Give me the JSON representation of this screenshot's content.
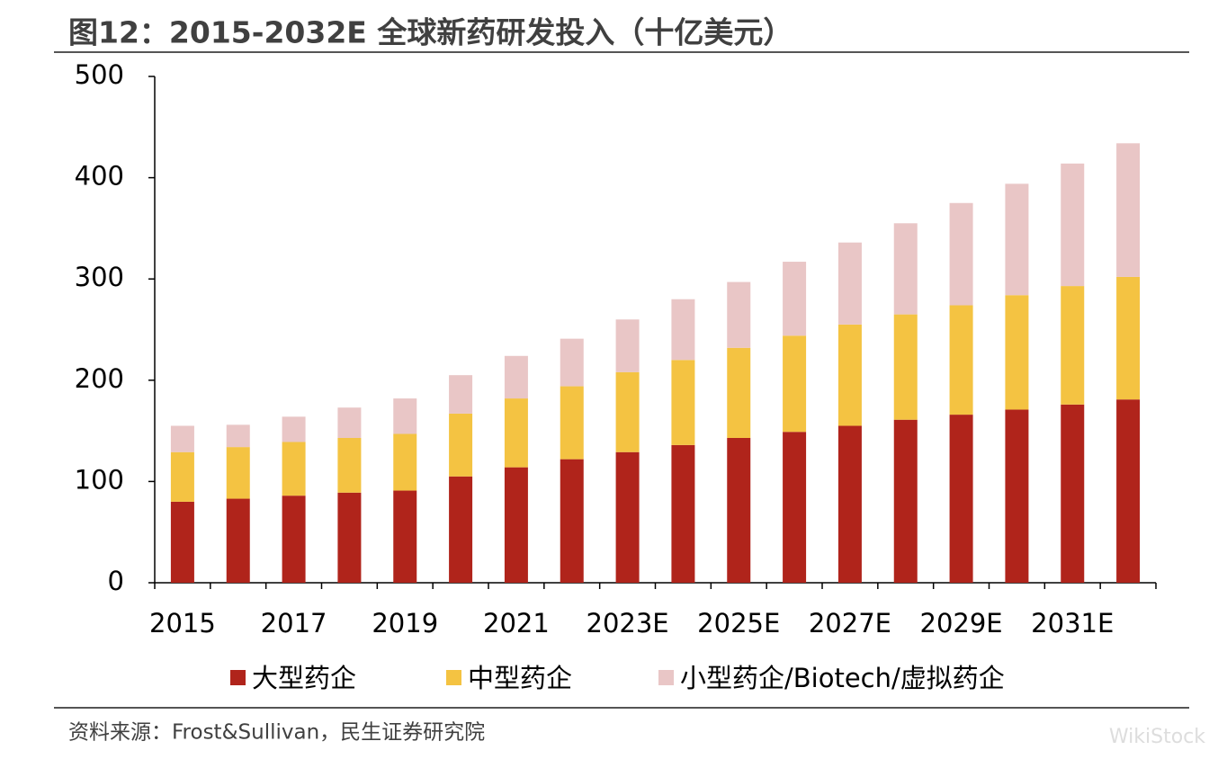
{
  "chart_data": {
    "type": "stacked_bar",
    "title": "图12：2015-2032E 全球新药研发投入（十亿美元）",
    "source": "资料来源：Frost&Sullivan，民生证券研究院",
    "watermark": "WikiStock",
    "categories": [
      "2015",
      null,
      "2017",
      null,
      "2019",
      null,
      "2021",
      null,
      "2023E",
      null,
      "2025E",
      null,
      "2027E",
      null,
      "2029E",
      null,
      "2031E",
      null
    ],
    "series": [
      {
        "name": "大型药企",
        "color": "#b0241b",
        "values": [
          80,
          83,
          86,
          89,
          91,
          105,
          114,
          122,
          129,
          136,
          143,
          149,
          155,
          161,
          166,
          171,
          176,
          181
        ]
      },
      {
        "name": "中型药企",
        "color": "#f4c342",
        "values": [
          49,
          51,
          53,
          54,
          56,
          62,
          68,
          72,
          79,
          84,
          89,
          95,
          100,
          104,
          108,
          113,
          117,
          121
        ]
      },
      {
        "name": "小型药企/Biotech/虚拟药企",
        "color": "#e9c6c6",
        "values": [
          26,
          22,
          25,
          30,
          35,
          38,
          42,
          47,
          52,
          60,
          65,
          73,
          81,
          90,
          101,
          110,
          121,
          132
        ]
      }
    ],
    "ylim": [
      0,
      500
    ],
    "yticks": [
      0,
      100,
      200,
      300,
      400,
      500
    ]
  }
}
